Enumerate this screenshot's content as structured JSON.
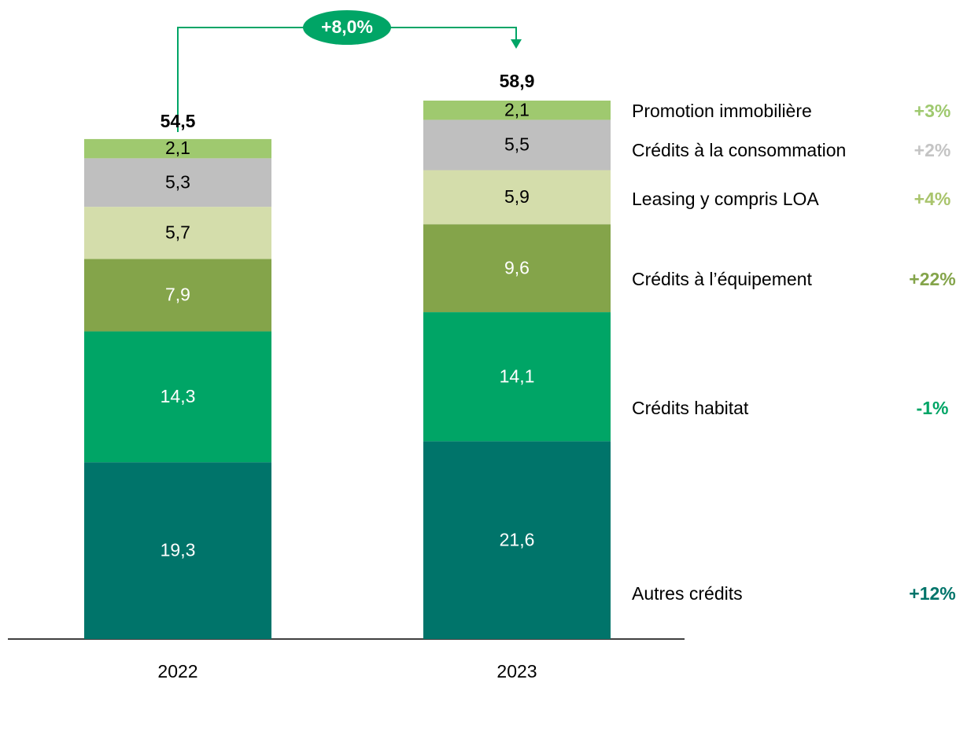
{
  "chart_data": {
    "type": "stacked_bar",
    "categories": [
      "2022",
      "2023"
    ],
    "series": [
      {
        "name": "Autres crédits",
        "color": "#00746a",
        "values": [
          19.3,
          21.6
        ],
        "value_labels": [
          "19,3",
          "21,6"
        ],
        "change": "+12%",
        "change_color": "#00746a"
      },
      {
        "name": "Crédits habitat",
        "color": "#00a566",
        "values": [
          14.3,
          14.1
        ],
        "value_labels": [
          "14,3",
          "14,1"
        ],
        "change": "-1%",
        "change_color": "#00a566"
      },
      {
        "name": "Crédits à l’équipement",
        "color": "#84a44a",
        "values": [
          7.9,
          9.6
        ],
        "value_labels": [
          "7,9",
          "9,6"
        ],
        "change": "+22%",
        "change_color": "#84a44a"
      },
      {
        "name": "Leasing y compris LOA",
        "color": "#d4ddab",
        "values": [
          5.7,
          5.9
        ],
        "value_labels": [
          "5,7",
          "5,9"
        ],
        "change": "+4%",
        "change_color": "#a9c46c"
      },
      {
        "name": "Crédits à la consommation",
        "color": "#bfbfbf",
        "values": [
          5.3,
          5.5
        ],
        "value_labels": [
          "5,3",
          "5,5"
        ],
        "change": "+2%",
        "change_color": "#c4c4c4"
      },
      {
        "name": "Promotion immobilière",
        "color": "#9fc96f",
        "values": [
          2.1,
          2.1
        ],
        "value_labels": [
          "2,1",
          "2,1"
        ],
        "change": "+3%",
        "change_color": "#9fc96f"
      }
    ],
    "totals": [
      54.5,
      58.9
    ],
    "total_labels": [
      "54,5",
      "58,9"
    ],
    "annotation": "+8,0%"
  }
}
